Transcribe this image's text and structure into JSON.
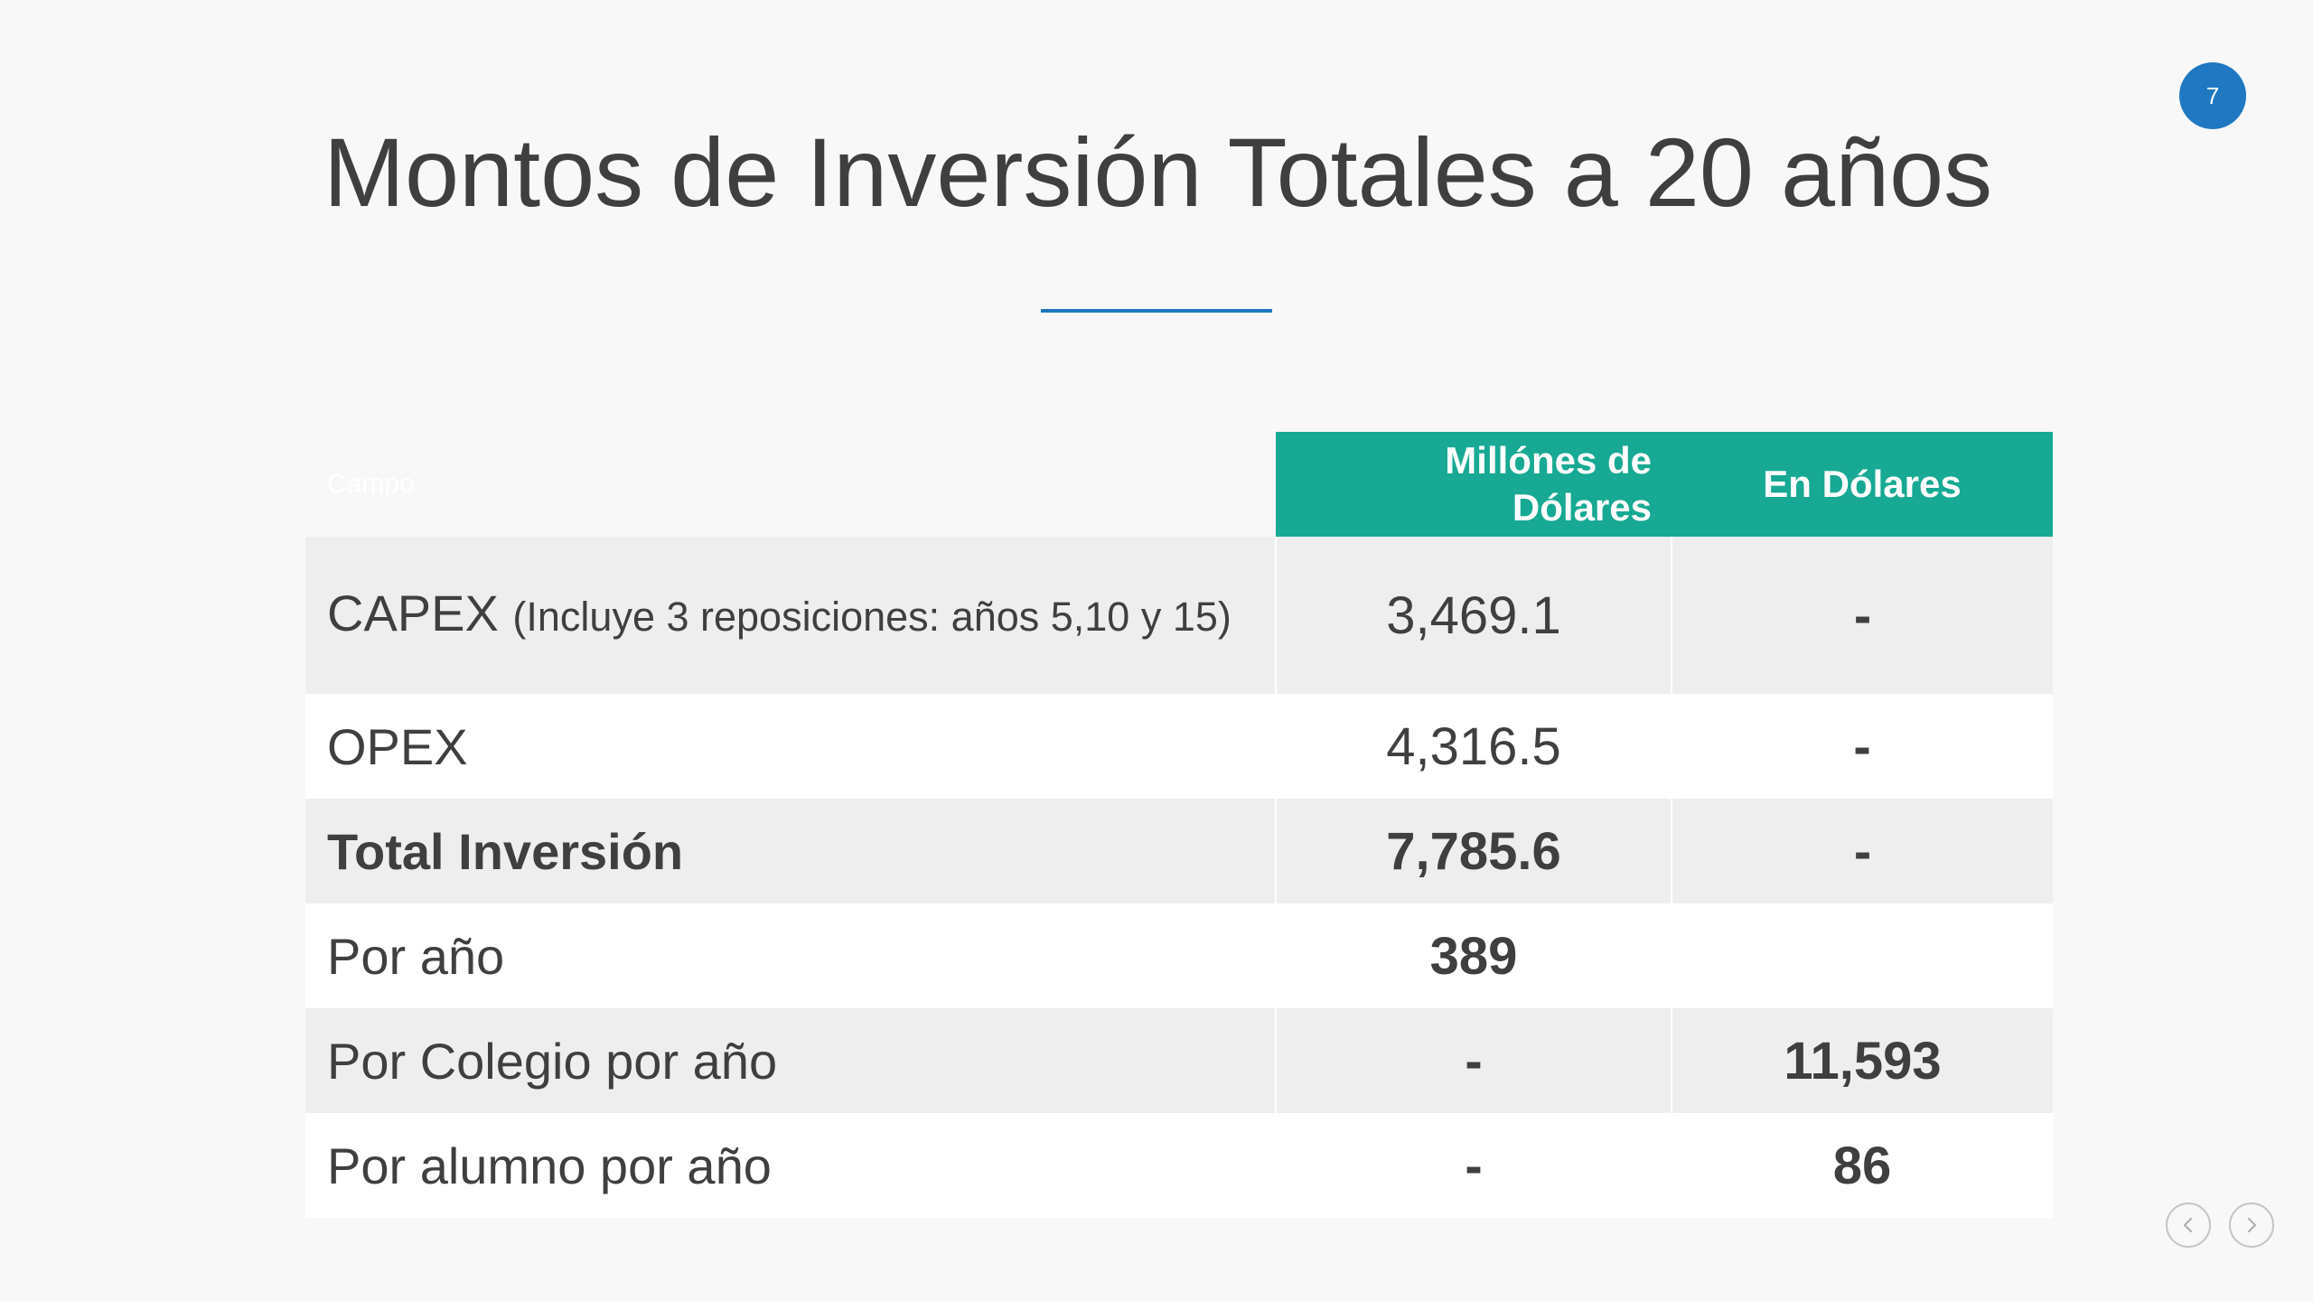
{
  "slide": {
    "number": "7",
    "title": "Montos de Inversión Totales a 20 años"
  },
  "colors": {
    "accent": "#1f78c1",
    "header_bg": "#17a993",
    "row_shade": "#eeeeee",
    "text": "#3f3f3f"
  },
  "table": {
    "headers": {
      "campo": "Campo",
      "millones": "Millónes de Dólares",
      "dolares": "En Dólares"
    },
    "rows": [
      {
        "campo_main": "CAPEX",
        "campo_note": "(Incluye 3 reposiciones: años 5,10 y 15)",
        "millones": "3,469.1",
        "dolares": "-"
      },
      {
        "campo": "OPEX",
        "millones": "4,316.5",
        "dolares": "-"
      },
      {
        "campo": "Total Inversión",
        "millones": "7,785.6",
        "dolares": "-"
      },
      {
        "campo": "Por año",
        "millones": "389",
        "dolares": ""
      },
      {
        "campo": "Por Colegio por año",
        "millones": "-",
        "dolares": "11,593"
      },
      {
        "campo": "Por alumno por año",
        "millones": "-",
        "dolares": "86"
      }
    ]
  },
  "navigation": {
    "prev_icon": "chevron-left-icon",
    "next_icon": "chevron-right-icon"
  }
}
